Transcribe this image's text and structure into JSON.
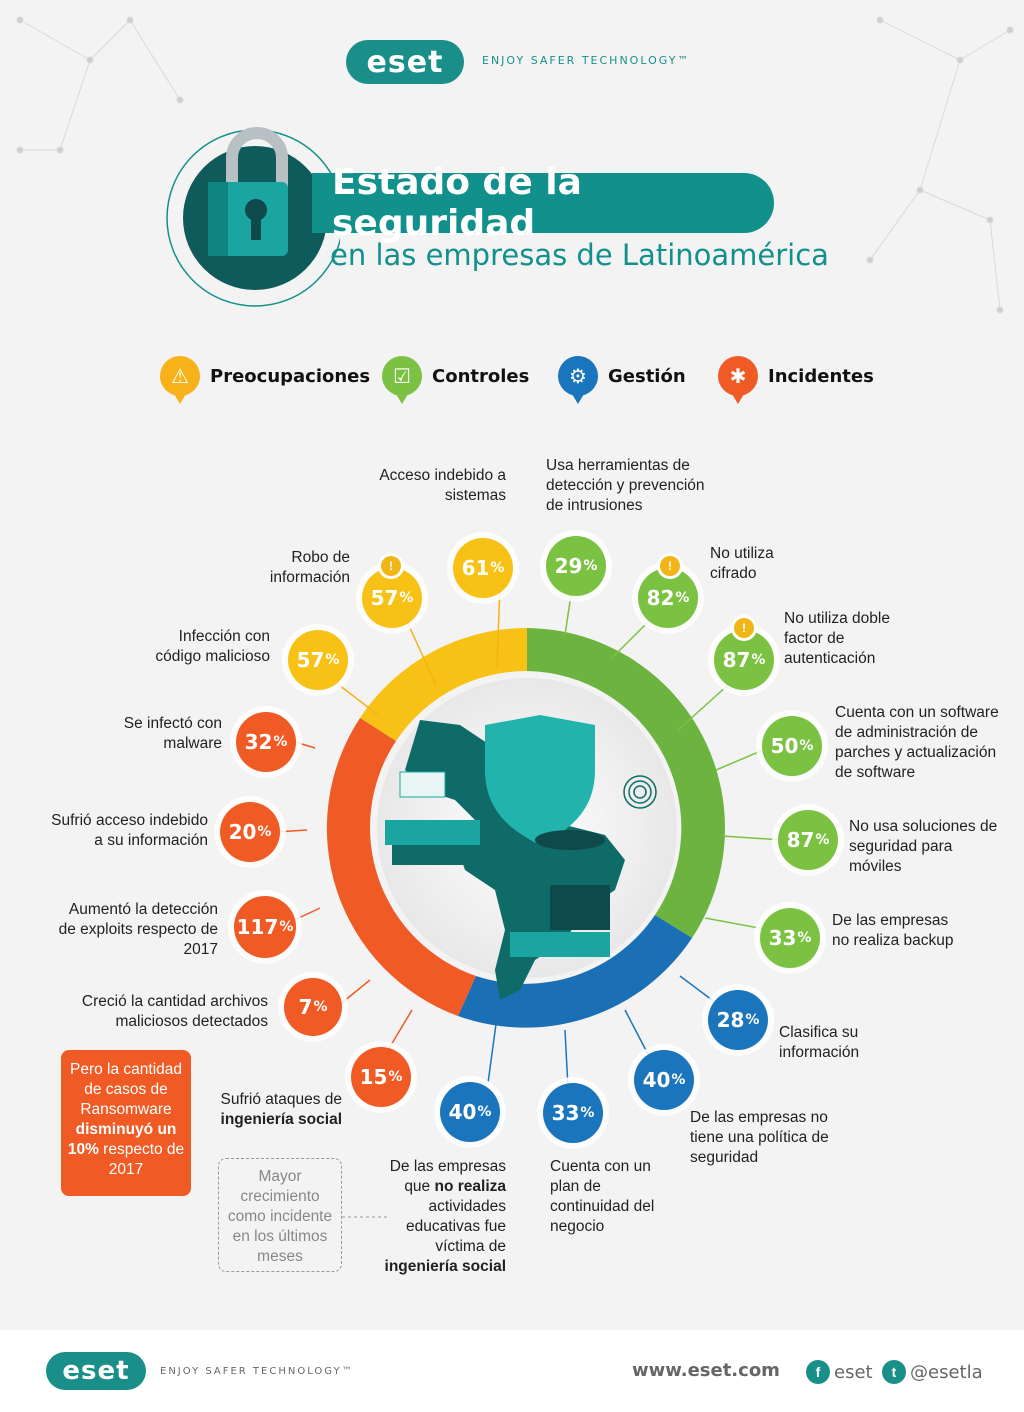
{
  "header": {
    "logo": "eset",
    "tagline": "ENJOY SAFER TECHNOLOGY™",
    "title": "Estado de la seguridad",
    "subtitle": "en las empresas de Latinoamérica"
  },
  "legend": [
    {
      "label": "Preocupaciones",
      "icon": "warning-icon",
      "color": "#f7b21a"
    },
    {
      "label": "Controles",
      "icon": "checkbox-icon",
      "color": "#7cc242"
    },
    {
      "label": "Gestión",
      "icon": "gear-icon",
      "color": "#1b75bc"
    },
    {
      "label": "Incidentes",
      "icon": "bug-icon",
      "color": "#f05a24"
    }
  ],
  "colors": {
    "yellow": "#f7b21a",
    "green": "#7cc242",
    "blue": "#1b75bc",
    "orange": "#f05a24",
    "teal": "#12908c"
  },
  "stats": {
    "acceso_sistemas": {
      "value": "61",
      "label": "Acceso indebido a sistemas"
    },
    "robo_info": {
      "value": "57",
      "label": "Robo de información"
    },
    "infeccion": {
      "value": "57",
      "label": "Infección con código malicioso"
    },
    "herramientas": {
      "value": "29",
      "label": "Usa herramientas de detección y prevención de intrusiones"
    },
    "cifrado": {
      "value": "82",
      "label": "No utiliza cifrado"
    },
    "doble_factor": {
      "value": "87",
      "label": "No utiliza doble factor de autenticación"
    },
    "parches": {
      "value": "50",
      "label": "Cuenta con un software de administración de parches y actualización de software"
    },
    "moviles": {
      "value": "87",
      "label": "No usa soluciones de seguridad para móviles"
    },
    "backup": {
      "value": "33",
      "label": "De las empresas no realiza backup"
    },
    "clasifica": {
      "value": "28",
      "label": "Clasifica su información"
    },
    "politica": {
      "value": "40",
      "label": "De las empresas no tiene una política de seguridad"
    },
    "continuidad": {
      "value": "33",
      "label": "Cuenta con un plan de continuidad del negocio"
    },
    "educativas": {
      "value": "40",
      "label_a": "De las empresas que",
      "label_b": "no realiza",
      "label_c": "actividades educativas fue víctima de",
      "label_d": "ingeniería social"
    },
    "ing_social": {
      "value": "15",
      "label_a": "Sufrió ataques de",
      "label_b": "ingeniería social"
    },
    "malware": {
      "value": "32",
      "label": "Se infectó con malware"
    },
    "acceso_info": {
      "value": "20",
      "label": "Sufrió acceso indebido a su información"
    },
    "exploits": {
      "value": "117",
      "label": "Aumentó la detección de exploits respecto de 2017"
    },
    "archivos": {
      "value": "7",
      "label": "Creció la cantidad archivos maliciosos detectados"
    }
  },
  "ransomware_note": {
    "a": "Pero la cantidad de casos de Ransomware",
    "b": "disminuyó un 10%",
    "c": "respecto de 2017"
  },
  "growth_note": "Mayor crecimiento como incidente en los últimos meses",
  "footer": {
    "url": "www.eset.com",
    "facebook": "eset",
    "twitter": "@esetla"
  }
}
